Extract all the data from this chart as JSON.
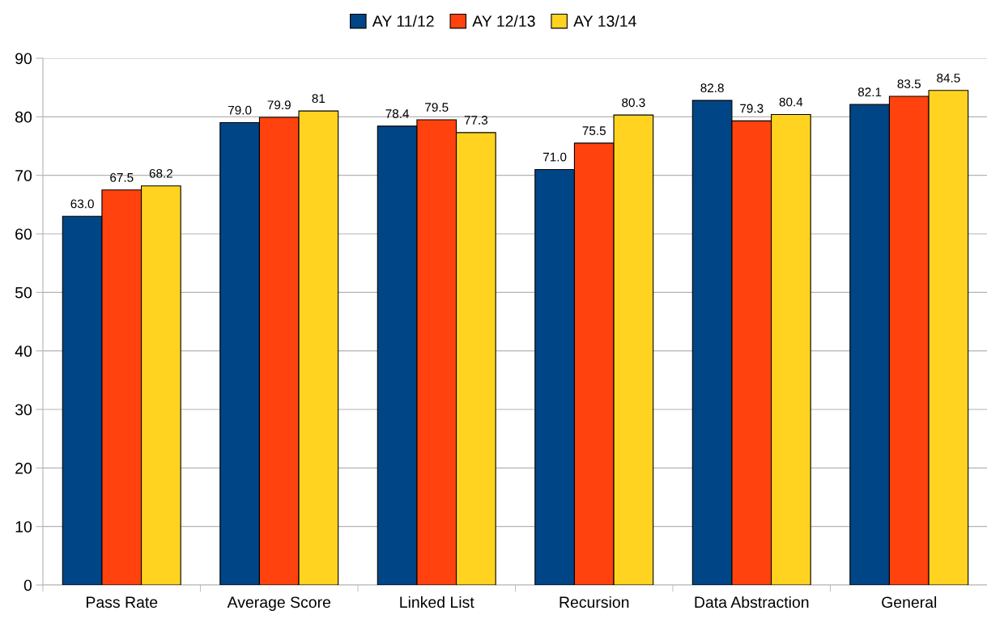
{
  "chart_data": {
    "type": "bar",
    "categories": [
      "Pass Rate",
      "Average Score",
      "Linked List",
      "Recursion",
      "Data Abstraction",
      "General"
    ],
    "series": [
      {
        "name": "AY 11/12",
        "color": "#004586",
        "values": [
          63.0,
          79.0,
          78.4,
          71.0,
          82.8,
          82.1
        ],
        "value_labels": [
          "63.0",
          "79.0",
          "78.4",
          "71.0",
          "82.8",
          "82.1"
        ]
      },
      {
        "name": "AY 12/13",
        "color": "#ff420e",
        "values": [
          67.5,
          79.9,
          79.5,
          75.5,
          79.3,
          83.5
        ],
        "value_labels": [
          "67.5",
          "79.9",
          "79.5",
          "75.5",
          "79.3",
          "83.5"
        ]
      },
      {
        "name": "AY 13/14",
        "color": "#ffd320",
        "values": [
          68.2,
          81,
          77.3,
          80.3,
          80.4,
          84.5
        ],
        "value_labels": [
          "68.2",
          "81",
          "77.3",
          "80.3",
          "80.4",
          "84.5"
        ]
      }
    ],
    "ylim": [
      0,
      90
    ],
    "yticks": [
      0,
      10,
      20,
      30,
      40,
      50,
      60,
      70,
      80,
      90
    ],
    "grid": "y",
    "legend": "top"
  }
}
